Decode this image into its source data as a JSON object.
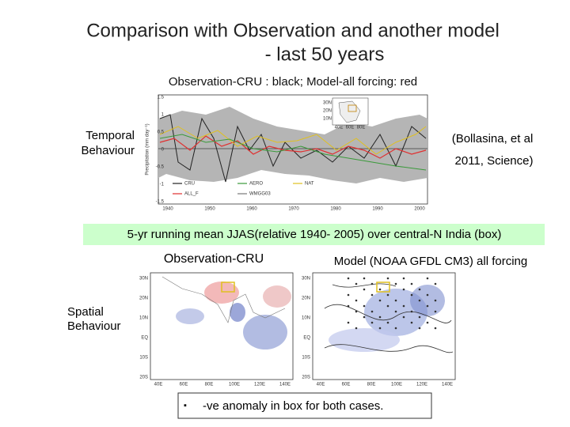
{
  "title": {
    "line1": "Comparison with Observation and another model",
    "line2": "- last 50 years"
  },
  "subtitle": "Observation-CRU : black; Model-all forcing: red",
  "temporal": {
    "label": [
      "Temporal",
      "Behaviour"
    ],
    "figure": {
      "ylabel": "Precipitation (mm day⁻¹)",
      "yticks": [
        "1.5",
        "1",
        "0.5",
        "0",
        "-0.5",
        "-1",
        "-1.5"
      ],
      "xticks": [
        "1940",
        "1950",
        "1960",
        "1970",
        "1980",
        "1990",
        "2000"
      ],
      "legend": [
        "CRU",
        "AERO",
        "NAT",
        "ALL_F",
        "WMGG03"
      ],
      "inset_lat": [
        "30N",
        "20N",
        "10N"
      ],
      "inset_lon": [
        "40E",
        "60E",
        "80E"
      ]
    }
  },
  "citation": [
    "(Bollasina, et al",
    "2011, Science)"
  ],
  "banner": "5-yr running mean JJAS(relative 1940- 2005) over central-N India (box)",
  "spatial": {
    "label": [
      "Spatial",
      "Behaviour"
    ],
    "obs_title": "Observation-CRU",
    "model_title": "Model (NOAA GFDL CM3) all forcing",
    "lat": [
      "30N",
      "20N",
      "10N",
      "EQ",
      "10S",
      "20S"
    ],
    "lon": [
      "40E",
      "60E",
      "80E",
      "100E",
      "120E",
      "140E"
    ]
  },
  "bullet": "-ve anomaly in box for both cases."
}
